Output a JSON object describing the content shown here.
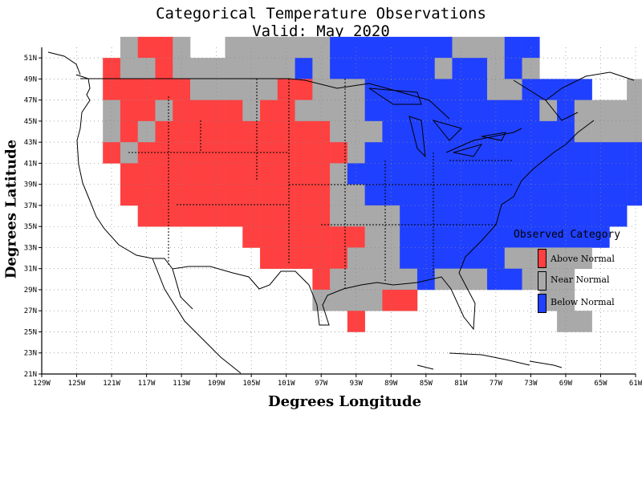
{
  "title": "Categorical Temperature Observations",
  "subtitle": "Valid: May 2020",
  "x_axis_label": "Degrees Longitude",
  "y_axis_label": "Degrees Latitude",
  "x_ticks": [
    "129W",
    "125W",
    "121W",
    "117W",
    "113W",
    "109W",
    "105W",
    "101W",
    "97W",
    "93W",
    "89W",
    "85W",
    "81W",
    "77W",
    "73W",
    "69W",
    "65W",
    "61W"
  ],
  "x_tick_values": [
    -129,
    -125,
    -121,
    -117,
    -113,
    -109,
    -105,
    -101,
    -97,
    -93,
    -89,
    -85,
    -81,
    -77,
    -73,
    -69,
    -65,
    -61
  ],
  "y_ticks": [
    "21N",
    "23N",
    "25N",
    "27N",
    "29N",
    "31N",
    "33N",
    "35N",
    "37N",
    "39N",
    "41N",
    "43N",
    "45N",
    "47N",
    "49N",
    "51N"
  ],
  "y_tick_values": [
    21,
    23,
    25,
    27,
    29,
    31,
    33,
    35,
    37,
    39,
    41,
    43,
    45,
    47,
    49,
    51
  ],
  "legend": {
    "title": "Observed Category",
    "items": [
      {
        "label": "Above Normal",
        "color": "#ff4040"
      },
      {
        "label": "Near Normal",
        "color": "#a9a9a9"
      },
      {
        "label": "Below Normal",
        "color": "#2040ff"
      }
    ]
  },
  "map_extent": {
    "lon": [
      -129,
      -61
    ],
    "lat": [
      21,
      52
    ]
  },
  "grid": "dotted",
  "cell_size_deg": 2,
  "category_colors": {
    "A": "#ff4040",
    "N": "#a9a9a9",
    "B": "#2040ff"
  },
  "grid_origin": {
    "lon_west": -126,
    "lat_south": 25
  },
  "category_rows_north_to_south": [
    "...NAAN..NNNNNNBBBBBBBNNNBB.........",
    "..ANNANNNNNNNBNBBBBBBNBBNBN.......NN",
    "..AAAAANNNNNAANNNBBBBBBBNNBBBB..NNBNNN",
    "..NAANAAAANAANNNNBBBBBBBBBBNBNNNNNNN",
    "..NANAAAAAAAAAANNNBBBBBBBBBBBNNNNNNA",
    "..ANAAAAAAAAAAAANBBBBBBBBBBBBBBBBBB.",
    "...AAAAAAAAAAAANBBBBBBBBBBBBBBBBBB..",
    "...AAAAAAAAAAAANNBBBBBBBBBBBBBBBBB..",
    "....AAAAAAAAAAANNNNBBBBBBBBBBBBB....",
    "..........AAAAAAANNBBBBBBBBBBBB.....",
    "...........AAAAANNNBBBBBBNNNNN......",
    "..............ANNNNNBNNNBBNNN.......",
    "..............NNNNAA.......NN......",
    "................A...........NN......"
  ]
}
